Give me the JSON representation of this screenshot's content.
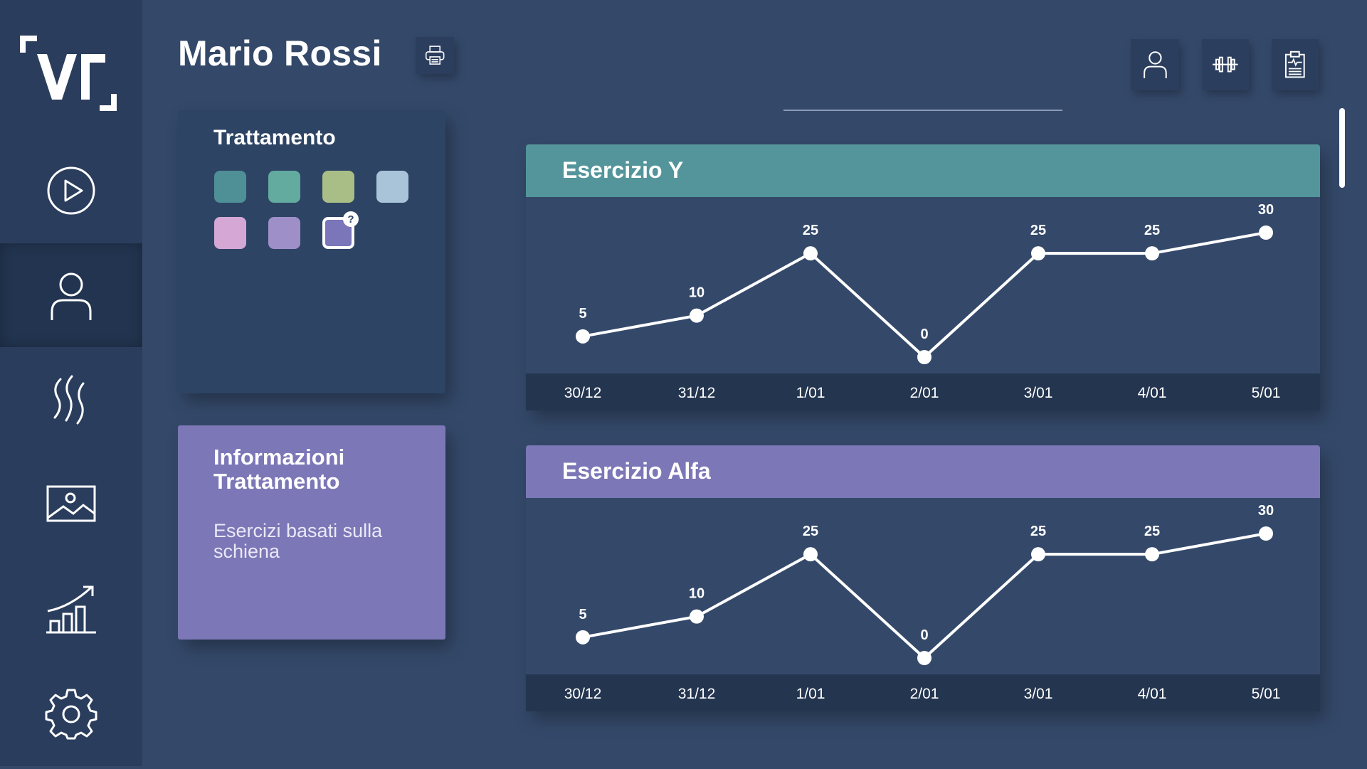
{
  "header": {
    "user_name": "Mario Rossi"
  },
  "sidebar": {
    "items": [
      {
        "name": "play"
      },
      {
        "name": "user",
        "active": true
      },
      {
        "name": "heat"
      },
      {
        "name": "image"
      },
      {
        "name": "stats"
      },
      {
        "name": "settings"
      }
    ]
  },
  "toolbar": {
    "icons": [
      "printer-icon",
      "user-icon",
      "dumbbell-icon",
      "clipboard-icon"
    ]
  },
  "treatment_card": {
    "title": "Trattamento",
    "swatches": [
      "#4f8f96",
      "#63aa9f",
      "#a9be86",
      "#a9c4d8",
      "#d4a7d4",
      "#9e8fc9",
      "#7a76b9"
    ],
    "selected_index": 0,
    "badge_index": 6,
    "badge_label": "?"
  },
  "info_card": {
    "title": "Informazioni Trattamento",
    "description": "Esercizi basati sulla schiena",
    "color": "#7c77b6"
  },
  "chart_data": [
    {
      "type": "line",
      "title": "Esercizio Y",
      "header_color": "#53959a",
      "categories": [
        "30/12",
        "31/12",
        "1/01",
        "2/01",
        "3/01",
        "4/01",
        "5/01"
      ],
      "values": [
        5,
        10,
        25,
        0,
        25,
        25,
        30
      ],
      "ylim": [
        0,
        30
      ],
      "grid": false
    },
    {
      "type": "line",
      "title": "Esercizio Alfa",
      "header_color": "#7c77b6",
      "categories": [
        "30/12",
        "31/12",
        "1/01",
        "2/01",
        "3/01",
        "4/01",
        "5/01"
      ],
      "values": [
        5,
        10,
        25,
        0,
        25,
        25,
        30
      ],
      "ylim": [
        0,
        30
      ],
      "grid": false
    }
  ]
}
